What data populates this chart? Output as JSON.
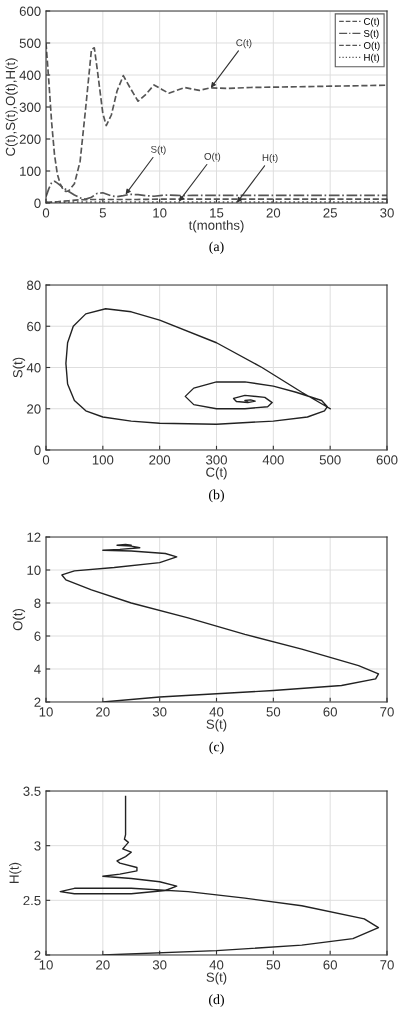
{
  "chart_data": [
    {
      "type": "line",
      "xlabel": "t(months)",
      "ylabel": "C(t),S(t),O(t),H(t)",
      "xlim": [
        0,
        30
      ],
      "xticks": [
        0,
        5,
        10,
        15,
        20,
        25,
        30
      ],
      "ylim": [
        0,
        600
      ],
      "yticks": [
        0,
        100,
        200,
        300,
        400,
        500,
        600
      ],
      "grid": true,
      "legend": "top right",
      "series": [
        {
          "name": "C(t)",
          "color": "#555555",
          "line_style": "dashed",
          "x": [
            0,
            0.25,
            0.5,
            0.75,
            1,
            1.25,
            1.5,
            1.75,
            2,
            2.5,
            3,
            3.5,
            4,
            4.25,
            4.5,
            5,
            5.3,
            5.75,
            6.25,
            6.8,
            7.4,
            8.1,
            8.8,
            9.5,
            10.2,
            10.8,
            11.5,
            12.2,
            12.9,
            13.5,
            14.5,
            16,
            18,
            20,
            25,
            30
          ],
          "values": [
            500,
            380,
            250,
            150,
            90,
            60,
            42,
            36,
            38,
            60,
            130,
            300,
            480,
            485,
            420,
            280,
            242,
            275,
            350,
            398,
            360,
            318,
            340,
            369,
            355,
            343,
            352,
            361,
            356,
            352,
            360,
            358,
            361,
            362,
            365,
            368
          ]
        },
        {
          "name": "S(t)",
          "color": "#555555",
          "line_style": "dashdot",
          "x": [
            0,
            0.25,
            0.5,
            0.75,
            1,
            1.25,
            1.5,
            1.75,
            2,
            2.5,
            3,
            3.5,
            4,
            4.25,
            4.5,
            5,
            5.3,
            5.75,
            6.25,
            6.8,
            7.4,
            8.1,
            8.8,
            9.5,
            10.2,
            10.8,
            11.5,
            12.2,
            12.9,
            13.5,
            14.5,
            16,
            18,
            20,
            25,
            30
          ],
          "values": [
            20,
            45,
            64,
            68,
            62,
            55,
            48,
            42,
            36,
            25,
            16,
            12,
            18,
            24,
            30,
            32,
            28,
            22,
            20,
            23,
            27,
            26,
            23,
            21,
            24,
            25,
            24,
            23,
            24,
            24,
            24,
            24,
            24,
            24,
            24,
            24
          ]
        },
        {
          "name": "O(t)",
          "color": "#555555",
          "line_style": "dashed",
          "x": [
            0,
            0.5,
            1,
            2,
            3,
            4,
            5,
            6,
            8,
            10,
            15,
            30
          ],
          "values": [
            2,
            3,
            4,
            7,
            10,
            11,
            11,
            11,
            11,
            12,
            12,
            12
          ]
        },
        {
          "name": "H(t)",
          "color": "#555555",
          "line_style": "dotted",
          "x": [
            0,
            1,
            2,
            3,
            4,
            6,
            8,
            12,
            20,
            30
          ],
          "values": [
            2,
            2,
            3,
            3,
            3,
            3,
            3,
            3,
            3,
            3
          ]
        }
      ],
      "annotations": [
        {
          "text": "C(t)",
          "x": 14.5,
          "y": 360
        },
        {
          "text": "S(t)",
          "x": 7,
          "y": 27
        },
        {
          "text": "O(t)",
          "x": 11.7,
          "y": 5
        },
        {
          "text": "H(t)",
          "x": 16.8,
          "y": 1
        },
        "(a)"
      ]
    },
    {
      "type": "line",
      "xlabel": "C(t)",
      "ylabel": "S(t)",
      "xlim": [
        0,
        600
      ],
      "xticks": [
        0,
        100,
        200,
        300,
        400,
        500,
        600
      ],
      "ylim": [
        0,
        80
      ],
      "yticks": [
        0,
        20,
        40,
        60,
        80
      ],
      "grid": true,
      "series": [
        {
          "color": "#222222",
          "x": [
            500,
            450,
            380,
            300,
            200,
            150,
            105,
            70,
            48,
            38,
            35,
            38,
            50,
            70,
            100,
            150,
            200,
            300,
            400,
            460,
            490,
            495,
            485,
            440,
            400,
            350,
            300,
            260,
            245,
            260,
            300,
            350,
            390,
            398,
            385,
            350,
            330,
            335,
            355,
            368,
            360,
            350,
            355
          ],
          "values": [
            20,
            28,
            40,
            52,
            63,
            67,
            68.5,
            66,
            60,
            52,
            42,
            32,
            24,
            19,
            16,
            14,
            13,
            12.5,
            14,
            16,
            19,
            21,
            24,
            28,
            31,
            33,
            33,
            30,
            26,
            22,
            20,
            20,
            21,
            23,
            25.5,
            26.5,
            25,
            23.5,
            23,
            23.7,
            24.3,
            24,
            23.8
          ]
        }
      ],
      "annotations": [
        "(b)"
      ]
    },
    {
      "type": "line",
      "xlabel": "S(t)",
      "ylabel": "O(t)",
      "xlim": [
        10,
        70
      ],
      "xticks": [
        10,
        20,
        30,
        40,
        50,
        60,
        70
      ],
      "ylim": [
        2,
        12
      ],
      "yticks": [
        2,
        4,
        6,
        8,
        10,
        12
      ],
      "grid": true,
      "series": [
        {
          "color": "#222222",
          "x": [
            20,
            30,
            50,
            62,
            68,
            68.5,
            65,
            55,
            45,
            35,
            25,
            18,
            13.5,
            12.8,
            15,
            22,
            30,
            33,
            31,
            25,
            20,
            23,
            26.5,
            25,
            22.5,
            24,
            25,
            24
          ],
          "values": [
            2,
            2.3,
            2.7,
            3.0,
            3.4,
            3.7,
            4.2,
            5.2,
            6.1,
            7.1,
            8.0,
            8.8,
            9.4,
            9.7,
            9.95,
            10.15,
            10.45,
            10.8,
            11.0,
            11.15,
            11.2,
            11.25,
            11.35,
            11.45,
            11.5,
            11.55,
            11.5,
            11.52
          ]
        }
      ],
      "annotations": [
        "(c)"
      ]
    },
    {
      "type": "line",
      "xlabel": "S(t)",
      "ylabel": "H(t)",
      "xlim": [
        10,
        70
      ],
      "xticks": [
        10,
        20,
        30,
        40,
        50,
        60,
        70
      ],
      "ylim": [
        2,
        3.5
      ],
      "yticks": [
        2,
        2.5,
        3,
        3.5
      ],
      "grid": true,
      "series": [
        {
          "color": "#222222",
          "x": [
            20,
            40,
            55,
            64,
            68.5,
            66,
            55,
            45,
            35,
            25,
            15,
            12.5,
            15,
            25,
            31,
            33,
            30,
            25,
            20,
            23,
            26,
            26,
            23,
            22.5,
            24,
            25,
            23.5,
            24,
            24.5,
            23.8,
            24,
            24,
            24,
            24
          ],
          "values": [
            2.0,
            2.04,
            2.09,
            2.15,
            2.25,
            2.33,
            2.45,
            2.52,
            2.58,
            2.61,
            2.61,
            2.58,
            2.56,
            2.56,
            2.59,
            2.63,
            2.67,
            2.7,
            2.72,
            2.74,
            2.77,
            2.8,
            2.84,
            2.86,
            2.9,
            2.94,
            2.97,
            3.0,
            3.03,
            3.06,
            3.1,
            3.2,
            3.3,
            3.45
          ]
        }
      ],
      "annotations": [
        "(d)"
      ]
    }
  ]
}
